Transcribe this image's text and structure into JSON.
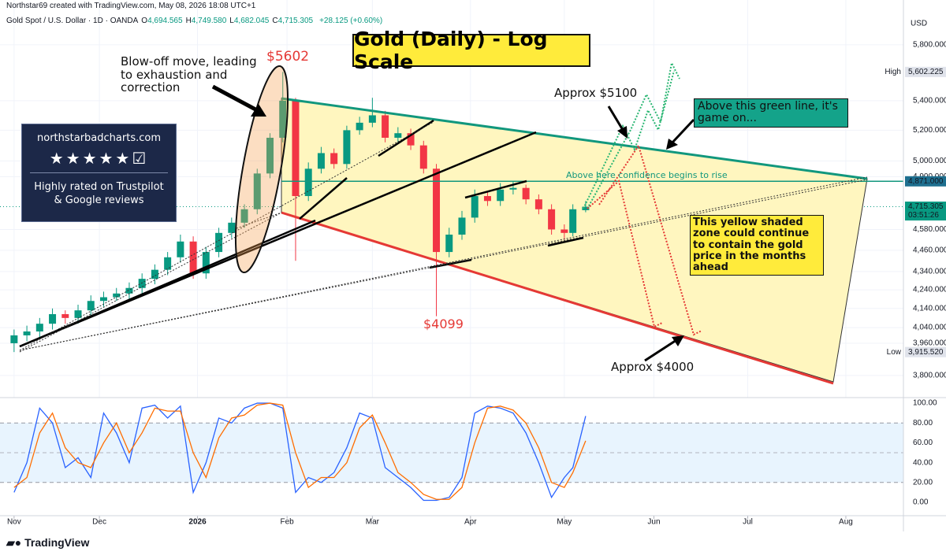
{
  "header": {
    "credit": "Northstar69 created with TradingView.com, May 08, 2026 18:08 UTC+1",
    "symbol": "Gold Spot / U.S. Dollar · 1D · OANDA",
    "ohlc": [
      {
        "key": "O",
        "value": "4,694.565"
      },
      {
        "key": "H",
        "value": "4,749.580"
      },
      {
        "key": "L",
        "value": "4,682.045"
      },
      {
        "key": "C",
        "value": "4,715.305"
      }
    ],
    "change": "+28.125 (+0.60%)"
  },
  "badge": {
    "site": "northstarbadcharts.com",
    "note": "Highly rated on Trustpilot & Google reviews"
  },
  "footer": {
    "logo": "TradingView"
  },
  "chart_data": [
    {
      "type": "candlestick",
      "title": "Gold (Daily) - Log Scale",
      "currency": "USD",
      "log_scale": true,
      "grid": true,
      "up_color": "#089981",
      "down_color": "#f23645",
      "x": [
        0,
        3,
        6,
        9,
        12,
        15,
        18,
        21,
        24,
        27,
        30,
        33,
        36,
        39,
        42,
        45,
        48,
        51,
        54,
        57,
        60,
        63,
        66,
        69,
        72,
        75,
        78,
        81,
        84,
        87,
        90,
        93,
        96,
        99,
        102,
        105,
        108,
        111,
        114,
        117,
        120,
        123,
        126,
        129,
        131,
        134
      ],
      "open": [
        3960,
        4000,
        4020,
        4060,
        4110,
        4090,
        4130,
        4180,
        4200,
        4220,
        4250,
        4300,
        4350,
        4420,
        4510,
        4330,
        4450,
        4560,
        4620,
        4700,
        4920,
        5150,
        5400,
        4780,
        4950,
        5050,
        4980,
        5200,
        5250,
        5300,
        5150,
        5180,
        5100,
        4950,
        4450,
        4550,
        4650,
        4780,
        4750,
        4820,
        4830,
        4760,
        4700,
        4580,
        4560,
        4694.565
      ],
      "high": [
        4030,
        4050,
        4090,
        4140,
        4130,
        4160,
        4210,
        4230,
        4250,
        4280,
        4330,
        4380,
        4450,
        4550,
        4540,
        4480,
        4590,
        4650,
        4730,
        4950,
        5180,
        5602.225,
        5420,
        4990,
        5090,
        5080,
        5230,
        5290,
        5420,
        5330,
        5220,
        5210,
        5130,
        4980,
        4590,
        4690,
        4820,
        4810,
        4860,
        4870,
        4850,
        4790,
        4730,
        4610,
        4730,
        4749.58
      ],
      "low": [
        3915.52,
        3970,
        3990,
        4030,
        4060,
        4060,
        4100,
        4150,
        4180,
        4190,
        4220,
        4270,
        4320,
        4390,
        4300,
        4300,
        4420,
        4530,
        4590,
        4670,
        4890,
        5120,
        4400,
        4750,
        4920,
        4950,
        4950,
        5170,
        5220,
        5120,
        5120,
        5070,
        4920,
        4099,
        4420,
        4520,
        4620,
        4720,
        4720,
        4790,
        4730,
        4670,
        4550,
        4520,
        4540,
        4682.045
      ],
      "close": [
        4000,
        4020,
        4060,
        4110,
        4090,
        4130,
        4180,
        4200,
        4220,
        4250,
        4300,
        4350,
        4420,
        4510,
        4330,
        4450,
        4560,
        4620,
        4700,
        4920,
        5150,
        5400,
        4780,
        4950,
        5050,
        4980,
        5200,
        5250,
        5300,
        5150,
        5180,
        5100,
        4950,
        4450,
        4550,
        4650,
        4780,
        4750,
        4820,
        4830,
        4760,
        4700,
        4580,
        4560,
        4700,
        4715.305
      ],
      "xlim": [
        -3.3,
        208.5
      ],
      "ylim": [
        3694,
        6050
      ],
      "xticks": [
        {
          "value": 0,
          "label": "Nov"
        },
        {
          "value": 20,
          "label": "Dec"
        },
        {
          "value": 43,
          "label": "2026"
        },
        {
          "value": 64,
          "label": "Feb"
        },
        {
          "value": 84,
          "label": "Mar"
        },
        {
          "value": 107,
          "label": "Apr"
        },
        {
          "value": 129,
          "label": "May"
        },
        {
          "value": 150,
          "label": "Jun"
        },
        {
          "value": 172,
          "label": "Jul"
        },
        {
          "value": 195,
          "label": "Aug"
        }
      ],
      "yticks": [
        {
          "value": 3800,
          "label": "3,800.000"
        },
        {
          "value": 3960,
          "label": "3,960.000"
        },
        {
          "value": 4040,
          "label": "4,040.000"
        },
        {
          "value": 4140,
          "label": "4,140.000"
        },
        {
          "value": 4240,
          "label": "4,240.000"
        },
        {
          "value": 4340,
          "label": "4,340.000"
        },
        {
          "value": 4460,
          "label": "4,460.000"
        },
        {
          "value": 4580,
          "label": "4,580.000"
        },
        {
          "value": 4900,
          "label": "4,900.000"
        },
        {
          "value": 5000,
          "label": "5,000.000"
        },
        {
          "value": 5200,
          "label": "5,200.000"
        },
        {
          "value": 5400,
          "label": "5,400.000"
        },
        {
          "value": 5800,
          "label": "5,800.000"
        }
      ],
      "price_labels": [
        {
          "value": 5602.225,
          "label": "5,602.225",
          "tag": "High",
          "color": "#e0e3eb",
          "text_color": "#131722"
        },
        {
          "value": 4871,
          "label": "4,871.000",
          "color": "#1e6f8f",
          "text_color": "#ffffff",
          "line": "solid"
        },
        {
          "value": 4715.305,
          "label": "4,715.305",
          "sublabel": "03:51:26",
          "color": "#089981",
          "text_color": "#ffffff",
          "line": "dotted"
        },
        {
          "value": 3915.52,
          "label": "3,915.520",
          "tag": "Low",
          "color": "#e0e3eb",
          "text_color": "#131722"
        }
      ],
      "annotations": [
        "Blow-off move, leading to exhaustion and correction",
        "$5602",
        "$4099",
        "Approx $5100",
        "Above this green line, it's game on...",
        "Above here confidence begins to rise",
        "This yellow shaded zone could continue to contain the gold price in the months ahead",
        "Approx $4000"
      ]
    },
    {
      "type": "line",
      "x": [
        0,
        3,
        6,
        9,
        12,
        15,
        18,
        21,
        24,
        27,
        30,
        33,
        36,
        39,
        42,
        45,
        48,
        51,
        54,
        57,
        60,
        63,
        66,
        69,
        72,
        75,
        78,
        81,
        84,
        87,
        90,
        93,
        96,
        99,
        102,
        105,
        108,
        111,
        114,
        117,
        120,
        123,
        126,
        129,
        131,
        134
      ],
      "xlim": [
        -3.3,
        208.5
      ],
      "ylim": [
        -13.5,
        105.6
      ],
      "yticks": [
        {
          "value": 0,
          "label": "0.00"
        },
        {
          "value": 20,
          "label": "20.00"
        },
        {
          "value": 40,
          "label": "40.00"
        },
        {
          "value": 60,
          "label": "60.00"
        },
        {
          "value": 80,
          "label": "80.00"
        },
        {
          "value": 100,
          "label": "100.00"
        }
      ],
      "bands": [
        20,
        80
      ],
      "midline": 50,
      "series": [
        {
          "color": "#2962ff",
          "values": [
            10,
            40,
            95,
            80,
            35,
            45,
            25,
            90,
            70,
            40,
            95,
            98,
            85,
            97,
            10,
            40,
            85,
            80,
            95,
            100,
            100,
            95,
            10,
            25,
            20,
            30,
            55,
            90,
            85,
            35,
            25,
            15,
            2,
            2,
            5,
            25,
            90,
            97,
            95,
            90,
            70,
            40,
            5,
            25,
            35,
            87
          ]
        },
        {
          "color": "#ff6d00",
          "values": [
            15,
            25,
            70,
            90,
            55,
            40,
            35,
            60,
            80,
            50,
            70,
            95,
            92,
            92,
            50,
            25,
            65,
            85,
            88,
            98,
            100,
            98,
            50,
            15,
            25,
            25,
            40,
            75,
            88,
            60,
            30,
            20,
            8,
            3,
            3,
            15,
            60,
            95,
            97,
            93,
            80,
            55,
            20,
            15,
            30,
            62
          ]
        }
      ]
    }
  ]
}
